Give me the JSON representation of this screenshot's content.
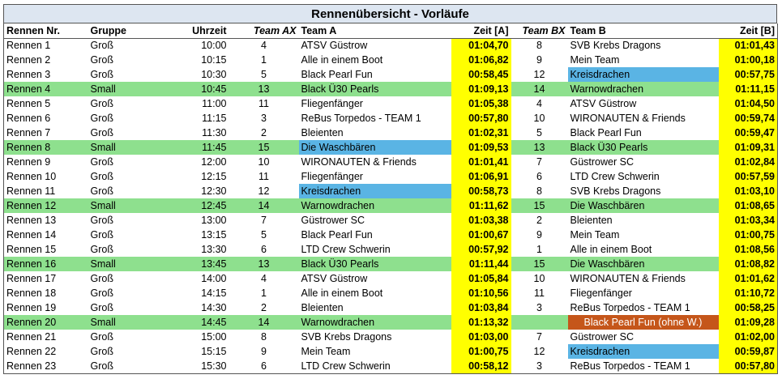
{
  "title": "Rennenübersicht - Vorläufe",
  "headers": [
    "Rennen Nr.",
    "Gruppe",
    "Uhrzeit",
    "Team AX",
    "Team A",
    "Zeit [A]",
    "Team BX",
    "Team B",
    "Zeit [B]"
  ],
  "colors": {
    "small_row": "#8ee08e",
    "time_cell": "#ffff00",
    "highlight_blue": "#5ab4e4",
    "highlight_orange": "#c5561a"
  },
  "rows": [
    {
      "race": "Rennen 1",
      "group": "Groß",
      "time": "10:00",
      "ax": "4",
      "team_a": "ATSV Güstrow",
      "zeit_a": "01:04,70",
      "bx": "8",
      "team_b": "SVB Krebs Dragons",
      "zeit_b": "01:01,43",
      "small": false,
      "hl_a": "",
      "hl_b": ""
    },
    {
      "race": "Rennen 2",
      "group": "Groß",
      "time": "10:15",
      "ax": "1",
      "team_a": "Alle in einem Boot",
      "zeit_a": "01:06,82",
      "bx": "9",
      "team_b": "Mein Team",
      "zeit_b": "01:00,18",
      "small": false,
      "hl_a": "",
      "hl_b": ""
    },
    {
      "race": "Rennen 3",
      "group": "Groß",
      "time": "10:30",
      "ax": "5",
      "team_a": "Black Pearl Fun",
      "zeit_a": "00:58,45",
      "bx": "12",
      "team_b": "Kreisdrachen",
      "zeit_b": "00:57,75",
      "small": false,
      "hl_a": "",
      "hl_b": "blue"
    },
    {
      "race": "Rennen 4",
      "group": "Small",
      "time": "10:45",
      "ax": "13",
      "team_a": "Black Ü30 Pearls",
      "zeit_a": "01:09,13",
      "bx": "14",
      "team_b": "Warnowdrachen",
      "zeit_b": "01:11,15",
      "small": true,
      "hl_a": "",
      "hl_b": ""
    },
    {
      "race": "Rennen 5",
      "group": "Groß",
      "time": "11:00",
      "ax": "11",
      "team_a": "Fliegenfänger",
      "zeit_a": "01:05,38",
      "bx": "4",
      "team_b": "ATSV Güstrow",
      "zeit_b": "01:04,50",
      "small": false,
      "hl_a": "",
      "hl_b": ""
    },
    {
      "race": "Rennen 6",
      "group": "Groß",
      "time": "11:15",
      "ax": "3",
      "team_a": "ReBus Torpedos - TEAM 1",
      "zeit_a": "00:57,80",
      "bx": "10",
      "team_b": "WIRONAUTEN & Friends",
      "zeit_b": "00:59,74",
      "small": false,
      "hl_a": "",
      "hl_b": ""
    },
    {
      "race": "Rennen 7",
      "group": "Groß",
      "time": "11:30",
      "ax": "2",
      "team_a": "Bleienten",
      "zeit_a": "01:02,31",
      "bx": "5",
      "team_b": "Black Pearl Fun",
      "zeit_b": "00:59,47",
      "small": false,
      "hl_a": "",
      "hl_b": ""
    },
    {
      "race": "Rennen 8",
      "group": "Small",
      "time": "11:45",
      "ax": "15",
      "team_a": "Die Waschbären",
      "zeit_a": "01:09,53",
      "bx": "13",
      "team_b": "Black Ü30 Pearls",
      "zeit_b": "01:09,31",
      "small": true,
      "hl_a": "blue",
      "hl_b": ""
    },
    {
      "race": "Rennen 9",
      "group": "Groß",
      "time": "12:00",
      "ax": "10",
      "team_a": "WIRONAUTEN & Friends",
      "zeit_a": "01:01,41",
      "bx": "7",
      "team_b": "Güstrower SC",
      "zeit_b": "01:02,84",
      "small": false,
      "hl_a": "",
      "hl_b": ""
    },
    {
      "race": "Rennen 10",
      "group": "Groß",
      "time": "12:15",
      "ax": "11",
      "team_a": "Fliegenfänger",
      "zeit_a": "01:06,91",
      "bx": "6",
      "team_b": "LTD Crew Schwerin",
      "zeit_b": "00:57,59",
      "small": false,
      "hl_a": "",
      "hl_b": ""
    },
    {
      "race": "Rennen 11",
      "group": "Groß",
      "time": "12:30",
      "ax": "12",
      "team_a": "Kreisdrachen",
      "zeit_a": "00:58,73",
      "bx": "8",
      "team_b": "SVB Krebs Dragons",
      "zeit_b": "01:03,10",
      "small": false,
      "hl_a": "blue",
      "hl_b": ""
    },
    {
      "race": "Rennen 12",
      "group": "Small",
      "time": "12:45",
      "ax": "14",
      "team_a": "Warnowdrachen",
      "zeit_a": "01:11,62",
      "bx": "15",
      "team_b": "Die Waschbären",
      "zeit_b": "01:08,65",
      "small": true,
      "hl_a": "",
      "hl_b": ""
    },
    {
      "race": "Rennen 13",
      "group": "Groß",
      "time": "13:00",
      "ax": "7",
      "team_a": "Güstrower SC",
      "zeit_a": "01:03,38",
      "bx": "2",
      "team_b": "Bleienten",
      "zeit_b": "01:03,34",
      "small": false,
      "hl_a": "",
      "hl_b": ""
    },
    {
      "race": "Rennen 14",
      "group": "Groß",
      "time": "13:15",
      "ax": "5",
      "team_a": "Black Pearl Fun",
      "zeit_a": "01:00,67",
      "bx": "9",
      "team_b": "Mein Team",
      "zeit_b": "01:00,75",
      "small": false,
      "hl_a": "",
      "hl_b": ""
    },
    {
      "race": "Rennen 15",
      "group": "Groß",
      "time": "13:30",
      "ax": "6",
      "team_a": "LTD Crew Schwerin",
      "zeit_a": "00:57,92",
      "bx": "1",
      "team_b": "Alle in einem Boot",
      "zeit_b": "01:08,56",
      "small": false,
      "hl_a": "",
      "hl_b": ""
    },
    {
      "race": "Rennen 16",
      "group": "Small",
      "time": "13:45",
      "ax": "13",
      "team_a": "Black Ü30 Pearls",
      "zeit_a": "01:11,44",
      "bx": "15",
      "team_b": "Die Waschbären",
      "zeit_b": "01:08,82",
      "small": true,
      "hl_a": "",
      "hl_b": ""
    },
    {
      "race": "Rennen 17",
      "group": "Groß",
      "time": "14:00",
      "ax": "4",
      "team_a": "ATSV Güstrow",
      "zeit_a": "01:05,84",
      "bx": "10",
      "team_b": "WIRONAUTEN & Friends",
      "zeit_b": "01:01,62",
      "small": false,
      "hl_a": "",
      "hl_b": ""
    },
    {
      "race": "Rennen 18",
      "group": "Groß",
      "time": "14:15",
      "ax": "1",
      "team_a": "Alle in einem Boot",
      "zeit_a": "01:10,56",
      "bx": "11",
      "team_b": "Fliegenfänger",
      "zeit_b": "01:10,72",
      "small": false,
      "hl_a": "",
      "hl_b": ""
    },
    {
      "race": "Rennen 19",
      "group": "Groß",
      "time": "14:30",
      "ax": "2",
      "team_a": "Bleienten",
      "zeit_a": "01:03,84",
      "bx": "3",
      "team_b": "ReBus Torpedos - TEAM 1",
      "zeit_b": "00:58,25",
      "small": false,
      "hl_a": "",
      "hl_b": ""
    },
    {
      "race": "Rennen 20",
      "group": "Small",
      "time": "14:45",
      "ax": "14",
      "team_a": "Warnowdrachen",
      "zeit_a": "01:13,32",
      "bx": "",
      "team_b": "Black Pearl Fun (ohne W.)",
      "zeit_b": "01:09,28",
      "small": true,
      "hl_a": "",
      "hl_b": "orange"
    },
    {
      "race": "Rennen 21",
      "group": "Groß",
      "time": "15:00",
      "ax": "8",
      "team_a": "SVB Krebs Dragons",
      "zeit_a": "01:03,00",
      "bx": "7",
      "team_b": "Güstrower SC",
      "zeit_b": "01:02,00",
      "small": false,
      "hl_a": "",
      "hl_b": ""
    },
    {
      "race": "Rennen 22",
      "group": "Groß",
      "time": "15:15",
      "ax": "9",
      "team_a": "Mein Team",
      "zeit_a": "01:00,75",
      "bx": "12",
      "team_b": "Kreisdrachen",
      "zeit_b": "00:59,87",
      "small": false,
      "hl_a": "",
      "hl_b": "blue"
    },
    {
      "race": "Rennen 23",
      "group": "Groß",
      "time": "15:30",
      "ax": "6",
      "team_a": "LTD Crew Schwerin",
      "zeit_a": "00:58,12",
      "bx": "3",
      "team_b": "ReBus Torpedos - TEAM 1",
      "zeit_b": "00:57,80",
      "small": false,
      "hl_a": "",
      "hl_b": ""
    }
  ]
}
